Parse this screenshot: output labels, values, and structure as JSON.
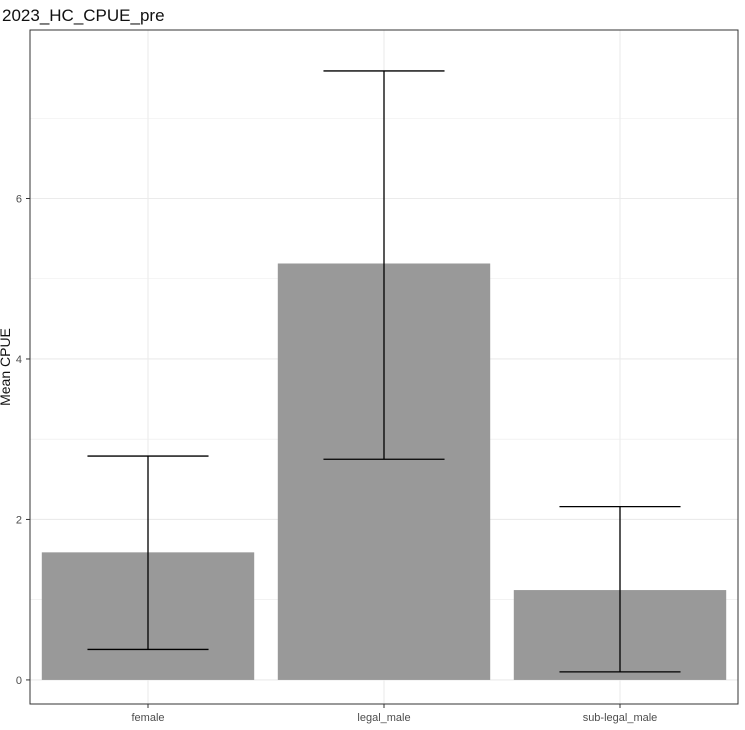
{
  "chart_data": {
    "type": "bar",
    "title": "2023_HC_CPUE_pre",
    "xlabel": "",
    "ylabel": "Mean CPUE",
    "categories": [
      "female",
      "legal_male",
      "sub-legal_male"
    ],
    "values": [
      1.59,
      5.19,
      1.12
    ],
    "error_low": [
      0.38,
      2.75,
      0.1
    ],
    "error_high": [
      2.79,
      7.59,
      2.16
    ],
    "ylim": [
      -0.3,
      8.1
    ],
    "yticks": [
      0,
      2,
      4,
      6
    ],
    "yticks_minor": [
      1,
      3,
      5,
      7
    ],
    "grid": true,
    "legend": "none",
    "colors": {
      "bar": "#999999",
      "error": "#000000",
      "grid": "#ebebeb",
      "border": "#333333"
    }
  }
}
